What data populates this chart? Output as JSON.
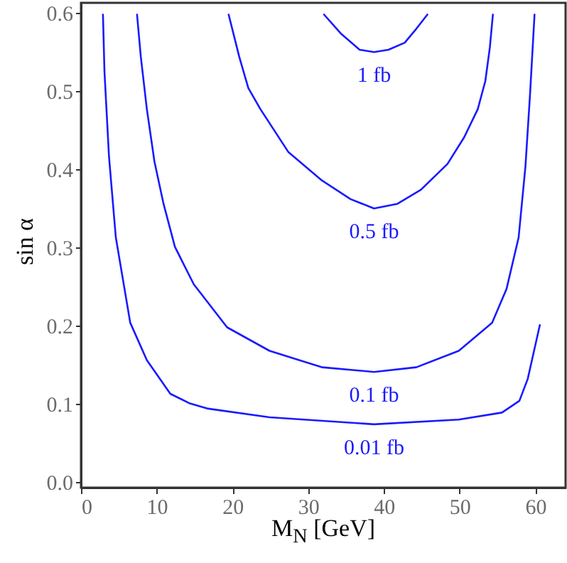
{
  "chart_data": {
    "type": "line",
    "xlabel": "M$_{N}$ [GeV]",
    "ylabel": "sin α",
    "xlim": [
      0,
      64
    ],
    "ylim": [
      -0.007,
      0.613
    ],
    "xticks": [
      0,
      10,
      20,
      30,
      40,
      50,
      60
    ],
    "yticks": [
      {
        "value": 0,
        "label": "0.0"
      },
      0.1,
      0.2,
      0.3,
      0.4,
      0.5,
      0.6
    ],
    "grid": false,
    "marker": "none",
    "line_style": "solid",
    "series": [
      {
        "name": "1 fb",
        "color": "#1a1aff",
        "x": [
          32.1,
          34.3,
          36.8,
          38.7,
          40.6,
          42.75,
          44.3,
          45.75
        ],
        "values": [
          0.598,
          0.574,
          0.553,
          0.55,
          0.553,
          0.562,
          0.58,
          0.598
        ]
      },
      {
        "name": "0.5 fb",
        "color": "#1a1aff",
        "x": [
          19.5,
          20.9,
          22.1,
          23.7,
          27.4,
          31.8,
          35.6,
          38.7,
          41.8,
          44.9,
          48.4,
          50.6,
          52.4,
          53.4,
          54,
          54.4
        ],
        "values": [
          0.598,
          0.544,
          0.504,
          0.477,
          0.422,
          0.386,
          0.362,
          0.35,
          0.356,
          0.374,
          0.407,
          0.441,
          0.477,
          0.513,
          0.556,
          0.598
        ]
      },
      {
        "name": "0.1 fb",
        "color": "#1a1aff",
        "x": [
          7.4,
          7.9,
          8.7,
          9.7,
          10.9,
          12.4,
          14.9,
          19.3,
          24.9,
          31.8,
          38.7,
          44.3,
          49.9,
          54.3,
          56.2,
          57.8,
          58.7,
          59.3,
          59.9
        ],
        "values": [
          0.598,
          0.544,
          0.477,
          0.41,
          0.356,
          0.301,
          0.253,
          0.198,
          0.168,
          0.147,
          0.141,
          0.147,
          0.168,
          0.204,
          0.247,
          0.313,
          0.404,
          0.495,
          0.598
        ]
      },
      {
        "name": "0.01 fb",
        "color": "#1a1aff",
        "x": [
          2.9,
          3.1,
          3.7,
          4.6,
          6.5,
          8.7,
          11.8,
          14.3,
          16.8,
          24.9,
          38.7,
          49.9,
          55.6,
          57.9,
          59,
          60.6
        ],
        "values": [
          0.598,
          0.525,
          0.416,
          0.313,
          0.204,
          0.156,
          0.113,
          0.101,
          0.094,
          0.083,
          0.074,
          0.08,
          0.089,
          0.104,
          0.132,
          0.201
        ]
      }
    ]
  }
}
